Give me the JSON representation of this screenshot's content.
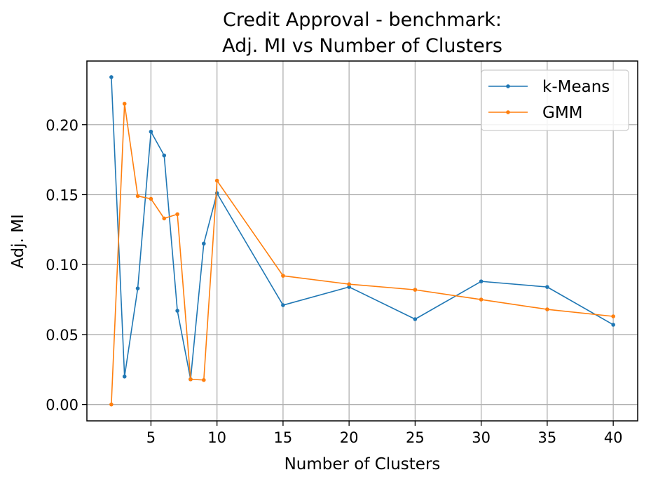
{
  "chart_data": {
    "type": "line",
    "title_line1": "Credit Approval - benchmark:",
    "title_line2": "Adj. MI vs Number of Clusters",
    "xlabel": "Number of Clusters",
    "ylabel": "Adj. MI",
    "xlim": [
      0.15,
      41.85
    ],
    "ylim": [
      -0.0117,
      0.2455
    ],
    "xticks": [
      5,
      10,
      15,
      20,
      25,
      30,
      35,
      40
    ],
    "xtick_labels": [
      "5",
      "10",
      "15",
      "20",
      "25",
      "30",
      "35",
      "40"
    ],
    "yticks": [
      0.0,
      0.05,
      0.1,
      0.15,
      0.2
    ],
    "ytick_labels": [
      "0.00",
      "0.05",
      "0.10",
      "0.15",
      "0.20"
    ],
    "grid": true,
    "legend_position": "top-right",
    "x": [
      2,
      3,
      4,
      5,
      6,
      7,
      8,
      9,
      10,
      15,
      20,
      25,
      30,
      35,
      40
    ],
    "series": [
      {
        "name": "k-Means",
        "color": "#1f77b4",
        "values": [
          0.234,
          0.02,
          0.083,
          0.195,
          0.178,
          0.067,
          0.018,
          0.115,
          0.151,
          0.071,
          0.084,
          0.061,
          0.088,
          0.084,
          0.057
        ]
      },
      {
        "name": "GMM",
        "color": "#ff7f0e",
        "values": [
          0.0,
          0.215,
          0.149,
          0.147,
          0.133,
          0.136,
          0.018,
          0.0175,
          0.16,
          0.092,
          0.086,
          0.082,
          0.075,
          0.068,
          0.063
        ]
      }
    ]
  }
}
